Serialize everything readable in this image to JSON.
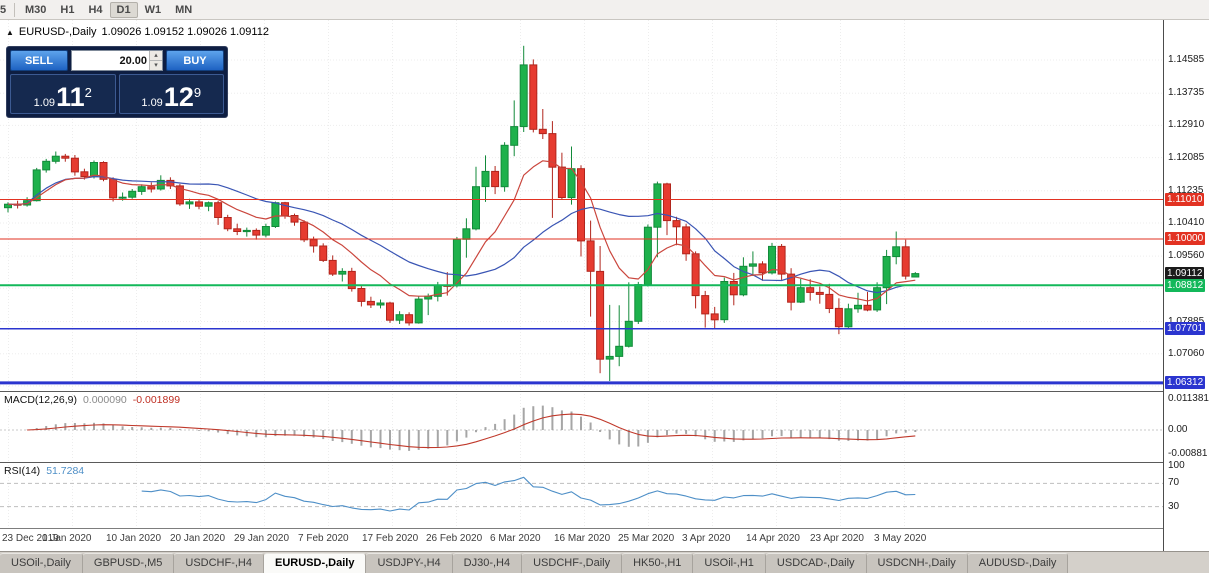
{
  "toolbar": {
    "buttons": [
      {
        "label": "5",
        "partial": true
      },
      {
        "label": "M30"
      },
      {
        "label": "H1"
      },
      {
        "label": "H4"
      },
      {
        "label": "D1",
        "active": true
      },
      {
        "label": "W1"
      },
      {
        "label": "MN"
      }
    ]
  },
  "chart": {
    "symbol_period": "EURUSD-,Daily",
    "ohlc": "1.09026 1.09152 1.09026 1.09112"
  },
  "icons": {
    "uptick": "▲",
    "spinner_up": "▴",
    "spinner_down": "▾"
  },
  "trade_panel": {
    "sell_label": "SELL",
    "buy_label": "BUY",
    "volume": "20.00",
    "sell_price": {
      "prefix": "1.09",
      "big": "11",
      "sup": "2"
    },
    "buy_price": {
      "prefix": "1.09",
      "big": "12",
      "sup": "9"
    }
  },
  "colors": {
    "up_fill": "#1eb14c",
    "up_edge": "#12ment8a3a",
    "down_fill": "#e63b30",
    "down_edge": "#b1251c",
    "ma_slow_blue": "#3a55b4",
    "ma_fast_red": "#ca463d",
    "macd_bar": "#a6a6a6",
    "macd_signal": "#c0392b",
    "rsi_line": "#4e8fc7",
    "grid": "#ededed"
  },
  "chart_data": {
    "type": "candlestick",
    "title": "EURUSD-,Daily",
    "x_labels": [
      "23 Dec 2019",
      "1 Jan 2020",
      "10 Jan 2020",
      "20 Jan 2020",
      "29 Jan 2020",
      "7 Feb 2020",
      "17 Feb 2020",
      "26 Feb 2020",
      "6 Mar 2020",
      "16 Mar 2020",
      "25 Mar 2020",
      "3 Apr 2020",
      "14 Apr 2020",
      "23 Apr 2020",
      "3 May 2020"
    ],
    "y_ticks": [
      "1.14585",
      "1.13735",
      "1.12910",
      "1.12085",
      "1.11235",
      "1.10410",
      "1.09560",
      "1.08735",
      "1.07885",
      "1.07060",
      "1.06235"
    ],
    "visible_price_range": [
      1.061,
      1.1561
    ],
    "candles": [
      [
        1.108,
        1.1094,
        1.1068,
        1.1089
      ],
      [
        1.1089,
        1.1098,
        1.1078,
        1.1087
      ],
      [
        1.1087,
        1.1107,
        1.1083,
        1.1098
      ],
      [
        1.1098,
        1.1182,
        1.1096,
        1.1177
      ],
      [
        1.1177,
        1.1205,
        1.117,
        1.1199
      ],
      [
        1.1199,
        1.1224,
        1.1193,
        1.1212
      ],
      [
        1.1212,
        1.1218,
        1.1198,
        1.1207
      ],
      [
        1.1207,
        1.1215,
        1.1162,
        1.1172
      ],
      [
        1.1172,
        1.118,
        1.1152,
        1.116
      ],
      [
        1.116,
        1.1201,
        1.1155,
        1.1196
      ],
      [
        1.1196,
        1.1199,
        1.1148,
        1.1153
      ],
      [
        1.1153,
        1.1158,
        1.1096,
        1.1105
      ],
      [
        1.1105,
        1.1119,
        1.1098,
        1.1107
      ],
      [
        1.1107,
        1.1128,
        1.1103,
        1.1122
      ],
      [
        1.1122,
        1.114,
        1.1113,
        1.1134
      ],
      [
        1.1134,
        1.1145,
        1.1119,
        1.1128
      ],
      [
        1.1128,
        1.1163,
        1.1124,
        1.115
      ],
      [
        1.115,
        1.1158,
        1.1128,
        1.1136
      ],
      [
        1.1136,
        1.1141,
        1.1085,
        1.109
      ],
      [
        1.109,
        1.1103,
        1.1077,
        1.1095
      ],
      [
        1.1095,
        1.1101,
        1.1076,
        1.1084
      ],
      [
        1.1084,
        1.1096,
        1.1071,
        1.1093
      ],
      [
        1.1093,
        1.1098,
        1.1036,
        1.1055
      ],
      [
        1.1055,
        1.1062,
        1.102,
        1.1026
      ],
      [
        1.1026,
        1.1039,
        1.101,
        1.1019
      ],
      [
        1.1019,
        1.1029,
        1.1006,
        1.1022
      ],
      [
        1.1022,
        1.1027,
        1.0998,
        1.101
      ],
      [
        1.101,
        1.1039,
        1.1004,
        1.1032
      ],
      [
        1.1032,
        1.1096,
        1.1028,
        1.1093
      ],
      [
        1.1093,
        1.1095,
        1.1052,
        1.106
      ],
      [
        1.106,
        1.1065,
        1.1034,
        1.1043
      ],
      [
        1.1043,
        1.1048,
        1.0992,
        1.0998
      ],
      [
        1.0998,
        1.1006,
        1.0965,
        1.0982
      ],
      [
        1.0982,
        1.0989,
        1.0941,
        1.0945
      ],
      [
        1.0945,
        1.0958,
        1.0905,
        1.091
      ],
      [
        1.091,
        1.0925,
        1.0891,
        1.0917
      ],
      [
        1.0917,
        1.0926,
        1.0865,
        1.0873
      ],
      [
        1.0873,
        1.0879,
        1.0827,
        1.084
      ],
      [
        1.084,
        1.0852,
        1.0823,
        1.0831
      ],
      [
        1.0831,
        1.0845,
        1.0822,
        1.0836
      ],
      [
        1.0836,
        1.0839,
        1.0785,
        1.0792
      ],
      [
        1.0792,
        1.0815,
        1.0782,
        1.0806
      ],
      [
        1.0806,
        1.0812,
        1.0778,
        1.0785
      ],
      [
        1.0785,
        1.0853,
        1.0783,
        1.0846
      ],
      [
        1.0846,
        1.086,
        1.0805,
        1.0853
      ],
      [
        1.0853,
        1.089,
        1.084,
        1.0881
      ],
      [
        1.0881,
        1.0915,
        1.0855,
        1.088
      ],
      [
        1.088,
        1.1005,
        1.0876,
        1.0999
      ],
      [
        1.0999,
        1.1053,
        1.0952,
        1.1026
      ],
      [
        1.1026,
        1.1185,
        1.1022,
        1.1134
      ],
      [
        1.1134,
        1.1214,
        1.1095,
        1.1173
      ],
      [
        1.1173,
        1.1187,
        1.1115,
        1.1134
      ],
      [
        1.1134,
        1.1248,
        1.1121,
        1.124
      ],
      [
        1.124,
        1.1355,
        1.1212,
        1.1288
      ],
      [
        1.1288,
        1.1495,
        1.1274,
        1.1446
      ],
      [
        1.1446,
        1.146,
        1.1273,
        1.1281
      ],
      [
        1.1281,
        1.1333,
        1.1256,
        1.127
      ],
      [
        1.127,
        1.1302,
        1.1054,
        1.1184
      ],
      [
        1.1184,
        1.1221,
        1.1102,
        1.1106
      ],
      [
        1.1106,
        1.1237,
        1.1088,
        1.118
      ],
      [
        1.118,
        1.1189,
        1.0955,
        1.0995
      ],
      [
        1.0995,
        1.1047,
        1.0801,
        1.0917
      ],
      [
        1.0917,
        1.0982,
        1.0656,
        1.0692
      ],
      [
        1.0692,
        1.0831,
        1.0636,
        1.0699
      ],
      [
        1.0699,
        1.083,
        1.0674,
        1.0725
      ],
      [
        1.0725,
        1.0889,
        1.0722,
        1.0789
      ],
      [
        1.0789,
        1.089,
        1.0782,
        1.0883
      ],
      [
        1.0883,
        1.1037,
        1.0878,
        1.103
      ],
      [
        1.103,
        1.1147,
        1.0953,
        1.1141
      ],
      [
        1.1141,
        1.1144,
        1.101,
        1.1047
      ],
      [
        1.1047,
        1.1057,
        1.0984,
        1.1031
      ],
      [
        1.1031,
        1.1039,
        1.0944,
        1.0962
      ],
      [
        1.0962,
        1.0968,
        1.0822,
        1.0855
      ],
      [
        1.0855,
        1.0867,
        1.0773,
        1.0808
      ],
      [
        1.0808,
        1.0826,
        1.0769,
        1.0793
      ],
      [
        1.0793,
        1.0901,
        1.0785,
        1.0891
      ],
      [
        1.0891,
        1.0913,
        1.083,
        1.0857
      ],
      [
        1.0857,
        1.0953,
        1.0853,
        1.093
      ],
      [
        1.093,
        1.0968,
        1.0905,
        1.0936
      ],
      [
        1.0936,
        1.0943,
        1.0893,
        1.0913
      ],
      [
        1.0913,
        1.099,
        1.0909,
        1.0981
      ],
      [
        1.0981,
        1.0987,
        1.0895,
        1.091
      ],
      [
        1.091,
        1.0925,
        1.0817,
        1.0838
      ],
      [
        1.0838,
        1.0898,
        1.0836,
        1.0875
      ],
      [
        1.0875,
        1.0897,
        1.0842,
        1.0863
      ],
      [
        1.0863,
        1.0878,
        1.0834,
        1.0858
      ],
      [
        1.0858,
        1.0885,
        1.081,
        1.0822
      ],
      [
        1.0822,
        1.0848,
        1.0756,
        1.0775
      ],
      [
        1.0775,
        1.0834,
        1.0772,
        1.0821
      ],
      [
        1.0821,
        1.0862,
        1.0811,
        1.083
      ],
      [
        1.083,
        1.0864,
        1.0815,
        1.0818
      ],
      [
        1.0818,
        1.0889,
        1.0813,
        1.0875
      ],
      [
        1.0875,
        1.0972,
        1.0833,
        1.0955
      ],
      [
        1.0955,
        1.1019,
        1.0935,
        1.098
      ],
      [
        1.098,
        1.0998,
        1.0896,
        1.0905
      ],
      [
        1.09026,
        1.09152,
        1.09026,
        1.09112
      ]
    ],
    "moving_averages": [
      {
        "type": "SMA",
        "period": 20,
        "color_key": "ma_slow_blue"
      },
      {
        "type": "EMA",
        "period": 10,
        "color_key": "ma_fast_red"
      }
    ],
    "hlines": [
      {
        "price": 1.1101,
        "label": "1.11010",
        "color": "#e23222",
        "width": 1
      },
      {
        "price": 1.1,
        "label": "1.10000",
        "color": "#e23222",
        "width": 1
      },
      {
        "price": 1.09112,
        "label": "1.09112",
        "color": "#1b1b1b",
        "width": 0
      },
      {
        "price": 1.08812,
        "label": "1.08812",
        "color": "#13b85a",
        "width": 2
      },
      {
        "price": 1.07701,
        "label": "1.07701",
        "color": "#2b35cf",
        "width": 1.5
      },
      {
        "price": 1.06312,
        "label": "1.06312",
        "color": "#2b35cf",
        "width": 3
      }
    ],
    "indicators": [
      {
        "type": "MACD",
        "display": "MACD(12,26,9)",
        "values": [
          "0.000090",
          "-0.001899"
        ],
        "axis_labels": [
          "0.011381",
          "0.00",
          "-0.00881"
        ],
        "axis_range": [
          -0.00881,
          0.011381
        ]
      },
      {
        "type": "RSI",
        "display": "RSI(14)",
        "value": "51.7284",
        "levels": [
          100,
          70,
          30
        ]
      }
    ]
  },
  "tabs": [
    {
      "label": "USOil-,Daily"
    },
    {
      "label": "GBPUSD-,M5"
    },
    {
      "label": "USDCHF-,H4"
    },
    {
      "label": "EURUSD-,Daily",
      "active": true
    },
    {
      "label": "USDJPY-,H4"
    },
    {
      "label": "DJ30-,H4"
    },
    {
      "label": "USDCHF-,Daily"
    },
    {
      "label": "HK50-,H1"
    },
    {
      "label": "USOil-,H1"
    },
    {
      "label": "USDCAD-,Daily"
    },
    {
      "label": "USDCNH-,Daily"
    },
    {
      "label": "AUDUSD-,Daily"
    }
  ]
}
